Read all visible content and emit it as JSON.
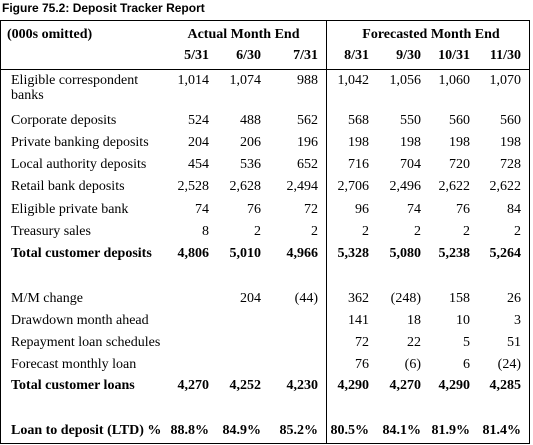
{
  "figure": {
    "title": "Figure 75.2: Deposit Tracker Report"
  },
  "header": {
    "units_label": "(000s omitted)",
    "actual_group": "Actual Month End",
    "forecast_group": "Forecasted Month End",
    "actual_dates": [
      "5/31",
      "6/30",
      "7/31"
    ],
    "forecast_dates": [
      "8/31",
      "9/30",
      "10/31",
      "11/30"
    ]
  },
  "deposits": [
    {
      "label": "Eligible correspondent",
      "label2": "banks",
      "actual": [
        "1,014",
        "1,074",
        "988"
      ],
      "forecast": [
        "1,042",
        "1,056",
        "1,060",
        "1,070"
      ]
    },
    {
      "label": "Corporate deposits",
      "actual": [
        "524",
        "488",
        "562"
      ],
      "forecast": [
        "568",
        "550",
        "560",
        "560"
      ]
    },
    {
      "label": "Private banking deposits",
      "actual": [
        "204",
        "206",
        "196"
      ],
      "forecast": [
        "198",
        "198",
        "198",
        "198"
      ]
    },
    {
      "label": "Local authority deposits",
      "actual": [
        "454",
        "536",
        "652"
      ],
      "forecast": [
        "716",
        "704",
        "720",
        "728"
      ]
    },
    {
      "label": "Retail bank deposits",
      "actual": [
        "2,528",
        "2,628",
        "2,494"
      ],
      "forecast": [
        "2,706",
        "2,496",
        "2,622",
        "2,622"
      ]
    },
    {
      "label": "Eligible private bank",
      "actual": [
        "74",
        "76",
        "72"
      ],
      "forecast": [
        "96",
        "74",
        "76",
        "84"
      ]
    },
    {
      "label": "Treasury sales",
      "actual": [
        "8",
        "2",
        "2"
      ],
      "forecast": [
        "2",
        "2",
        "2",
        "2"
      ]
    },
    {
      "label": "Total customer deposits",
      "bold": true,
      "actual": [
        "4,806",
        "5,010",
        "4,966"
      ],
      "forecast": [
        "5,328",
        "5,080",
        "5,238",
        "5,264"
      ]
    }
  ],
  "loans": [
    {
      "label": "M/M change",
      "actual": [
        "",
        "204",
        "(44)"
      ],
      "forecast": [
        "362",
        "(248)",
        "158",
        "26"
      ]
    },
    {
      "label": "Drawdown month ahead",
      "actual": [
        "",
        "",
        ""
      ],
      "forecast": [
        "141",
        "18",
        "10",
        "3"
      ]
    },
    {
      "label": "Repayment loan schedules",
      "actual": [
        "",
        "",
        ""
      ],
      "forecast": [
        "72",
        "22",
        "5",
        "51"
      ]
    },
    {
      "label": "Forecast monthly loan",
      "actual": [
        "",
        "",
        ""
      ],
      "forecast": [
        "76",
        "(6)",
        "6",
        "(24)"
      ]
    },
    {
      "label": "Total customer loans",
      "bold": true,
      "actual": [
        "4,270",
        "4,252",
        "4,230"
      ],
      "forecast": [
        "4,290",
        "4,270",
        "4,290",
        "4,285"
      ]
    }
  ],
  "ltd": {
    "label": "Loan to deposit (LTD) %",
    "actual": [
      "88.8%",
      "84.9%",
      "85.2%"
    ],
    "forecast": [
      "80.5%",
      "84.1%",
      "81.9%",
      "81.4%"
    ]
  }
}
